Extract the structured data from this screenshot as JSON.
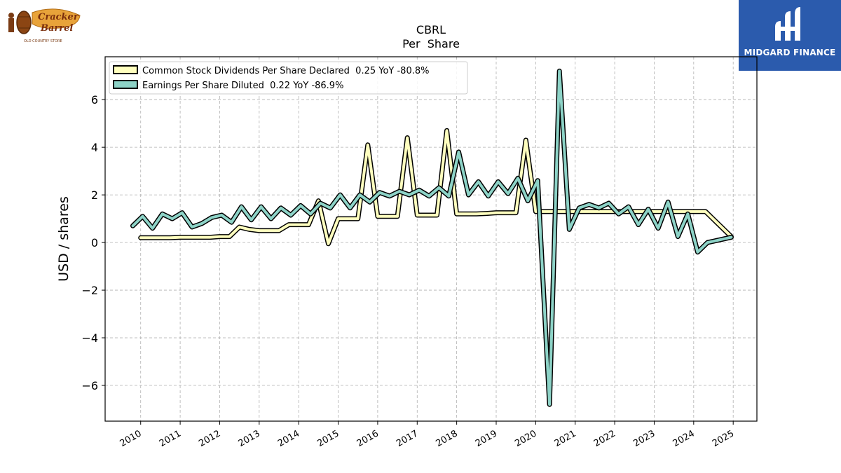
{
  "brand": {
    "company_logo_text": "Cracker Barrel",
    "company_logo_subtext": "OLD COUNTRY STORE",
    "partner_logo_text": "MIDGARD FINANCE",
    "partner_bg": "#2b5bad"
  },
  "chart_data": {
    "type": "line",
    "title": "CBRL",
    "subtitle": "Per  Share",
    "xlabel": "",
    "ylabel": "USD / shares",
    "ylim": [
      -7.5,
      7.8
    ],
    "xlim": [
      2009.1,
      2025.6
    ],
    "yticks": [
      -6,
      -4,
      -2,
      0,
      2,
      4,
      6
    ],
    "ytick_labels": [
      "−6",
      "−4",
      "−2",
      "0",
      "2",
      "4",
      "6"
    ],
    "xticks": [
      2010,
      2011,
      2012,
      2013,
      2014,
      2015,
      2016,
      2017,
      2018,
      2019,
      2020,
      2021,
      2022,
      2023,
      2024,
      2025
    ],
    "xtick_labels": [
      "2010",
      "2011",
      "2012",
      "2013",
      "2014",
      "2015",
      "2016",
      "2017",
      "2018",
      "2019",
      "2020",
      "2021",
      "2022",
      "2023",
      "2024",
      "2025"
    ],
    "grid": true,
    "legend_position": "top-left",
    "series": [
      {
        "name": "Common Stock Dividends Per Share Declared  0.25 YoY -80.8%",
        "color": "#ffffbf",
        "x": [
          2010.0,
          2010.25,
          2010.5,
          2010.75,
          2011.0,
          2011.25,
          2011.5,
          2011.75,
          2012.0,
          2012.25,
          2012.5,
          2012.75,
          2013.0,
          2013.25,
          2013.5,
          2013.75,
          2014.0,
          2014.25,
          2014.5,
          2014.75,
          2015.0,
          2015.25,
          2015.5,
          2015.75,
          2016.0,
          2016.25,
          2016.5,
          2016.75,
          2017.0,
          2017.25,
          2017.5,
          2017.75,
          2018.0,
          2018.25,
          2018.5,
          2018.75,
          2019.0,
          2019.25,
          2019.5,
          2019.75,
          2020.0,
          2020.25,
          2020.5,
          2020.75,
          2021.0,
          2021.25,
          2021.5,
          2021.75,
          2022.0,
          2022.25,
          2022.5,
          2022.75,
          2023.0,
          2023.25,
          2023.5,
          2023.75,
          2024.0,
          2024.3,
          2024.95
        ],
        "y": [
          0.2,
          0.2,
          0.2,
          0.2,
          0.22,
          0.22,
          0.22,
          0.22,
          0.25,
          0.25,
          0.65,
          0.55,
          0.5,
          0.5,
          0.5,
          0.75,
          0.75,
          0.75,
          1.75,
          -0.05,
          1.0,
          1.0,
          1.0,
          4.1,
          1.1,
          1.1,
          1.1,
          4.4,
          1.15,
          1.15,
          1.15,
          4.7,
          1.2,
          1.2,
          1.2,
          1.22,
          1.25,
          1.25,
          1.25,
          4.3,
          1.3,
          1.3,
          1.3,
          1.3,
          1.3,
          1.3,
          1.3,
          1.3,
          1.3,
          1.3,
          1.3,
          1.3,
          1.3,
          1.3,
          1.3,
          1.3,
          1.3,
          1.3,
          0.25
        ]
      },
      {
        "name": "Earnings Per Share Diluted  0.22 YoY -86.9%",
        "color": "#8dd3c7",
        "x": [
          2009.8,
          2010.05,
          2010.3,
          2010.55,
          2010.8,
          2011.05,
          2011.3,
          2011.55,
          2011.8,
          2012.05,
          2012.3,
          2012.55,
          2012.8,
          2013.05,
          2013.3,
          2013.55,
          2013.8,
          2014.05,
          2014.3,
          2014.55,
          2014.8,
          2015.05,
          2015.3,
          2015.55,
          2015.8,
          2016.05,
          2016.3,
          2016.55,
          2016.8,
          2017.05,
          2017.3,
          2017.55,
          2017.8,
          2018.05,
          2018.3,
          2018.55,
          2018.8,
          2019.05,
          2019.3,
          2019.55,
          2019.8,
          2020.05,
          2020.35,
          2020.6,
          2020.85,
          2021.1,
          2021.35,
          2021.6,
          2021.85,
          2022.1,
          2022.35,
          2022.6,
          2022.85,
          2023.1,
          2023.35,
          2023.6,
          2023.85,
          2024.1,
          2024.35,
          2024.95
        ],
        "y": [
          0.7,
          1.1,
          0.6,
          1.2,
          1.0,
          1.25,
          0.65,
          0.8,
          1.05,
          1.15,
          0.85,
          1.5,
          0.95,
          1.5,
          1.0,
          1.45,
          1.15,
          1.55,
          1.2,
          1.65,
          1.45,
          2.0,
          1.45,
          2.0,
          1.7,
          2.1,
          1.95,
          2.15,
          2.0,
          2.2,
          1.95,
          2.3,
          1.95,
          3.8,
          2.0,
          2.55,
          1.95,
          2.55,
          2.05,
          2.7,
          1.75,
          2.6,
          -6.8,
          7.2,
          0.55,
          1.45,
          1.6,
          1.45,
          1.65,
          1.2,
          1.5,
          0.75,
          1.4,
          0.6,
          1.7,
          0.25,
          1.2,
          -0.4,
          0.0,
          0.22
        ]
      }
    ]
  }
}
